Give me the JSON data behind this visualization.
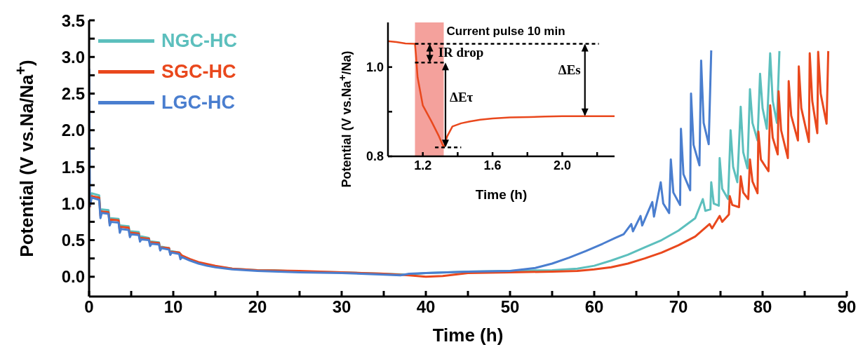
{
  "chart_data": [
    {
      "type": "line",
      "xlabel": "Time (h)",
      "ylabel": "Potential (V vs.Na/Na$^{+}$)",
      "legend": "top left",
      "xlim": [
        0,
        90
      ],
      "xticks": [
        0,
        {
          "value": 5,
          "label": null
        },
        10,
        {
          "value": 15,
          "label": null
        },
        20,
        {
          "value": 25,
          "label": null
        },
        30,
        {
          "value": 35,
          "label": null
        },
        40,
        {
          "value": 45,
          "label": null
        },
        50,
        {
          "value": 55,
          "label": null
        },
        60,
        {
          "value": 65,
          "label": null
        },
        70,
        {
          "value": 75,
          "label": null
        },
        80,
        {
          "value": 85,
          "label": null
        },
        90
      ],
      "ylim": [
        -0.27,
        3.5
      ],
      "yticks": [
        {
          "value": 0,
          "label": "0.0"
        },
        {
          "value": 0.25,
          "label": null
        },
        0.5,
        {
          "value": 0.75,
          "label": null
        },
        {
          "value": 1,
          "label": "1.0"
        },
        {
          "value": 1.25,
          "label": null
        },
        1.5,
        {
          "value": 1.75,
          "label": null
        },
        {
          "value": 2,
          "label": "2.0"
        },
        {
          "value": 2.25,
          "label": null
        },
        2.5,
        {
          "value": 2.75,
          "label": null
        },
        {
          "value": 3,
          "label": "3.0"
        },
        {
          "value": 3.25,
          "label": null
        },
        3.5
      ],
      "series": [
        {
          "name": "NGC-HC",
          "color": "#5cbfbd",
          "x": [
            0.1,
            0.3,
            1.2,
            1.35,
            1.5,
            2.3,
            2.45,
            2.6,
            3.5,
            3.65,
            3.8,
            4.7,
            4.85,
            5,
            5.9,
            6.05,
            6.2,
            7.1,
            7.25,
            7.4,
            8.3,
            8.45,
            8.6,
            9.5,
            9.65,
            9.8,
            10.7,
            11,
            12,
            13,
            15,
            17,
            20,
            22,
            25,
            30,
            35,
            38,
            40,
            45,
            50,
            55,
            58,
            60,
            62,
            64,
            66,
            68,
            70,
            72,
            72.9,
            73.2,
            73.8,
            73.9,
            74.2,
            74.8,
            74.9,
            75.2,
            75.9,
            76.2,
            76.5,
            77,
            77.4,
            77.7,
            78.2,
            78.5,
            78.8,
            79.4,
            79.7,
            80,
            80.5,
            80.9,
            81.2,
            81.7,
            82
          ],
          "values": [
            1.0,
            1.14,
            1.11,
            0.86,
            0.92,
            0.91,
            0.75,
            0.8,
            0.79,
            0.65,
            0.7,
            0.69,
            0.58,
            0.62,
            0.61,
            0.51,
            0.55,
            0.53,
            0.45,
            0.48,
            0.47,
            0.38,
            0.41,
            0.39,
            0.32,
            0.35,
            0.33,
            0.29,
            0.23,
            0.19,
            0.14,
            0.11,
            0.09,
            0.09,
            0.07,
            0.06,
            0.04,
            0.03,
            0.05,
            0.07,
            0.08,
            0.09,
            0.11,
            0.15,
            0.22,
            0.3,
            0.4,
            0.5,
            0.63,
            0.8,
            1.06,
            0.9,
            0.92,
            1.29,
            1.0,
            0.97,
            1.62,
            1.2,
            1.06,
            2.0,
            1.5,
            1.29,
            2.32,
            1.7,
            1.48,
            2.56,
            2.1,
            1.86,
            2.77,
            2.3,
            2.02,
            3.05,
            2.4,
            2.1,
            3.08
          ]
        },
        {
          "name": "SGC-HC",
          "color": "#e9481d",
          "x": [
            0.1,
            0.3,
            1.2,
            1.35,
            1.5,
            2.3,
            2.45,
            2.6,
            3.5,
            3.65,
            3.8,
            4.7,
            4.85,
            5,
            5.9,
            6.05,
            6.2,
            7.1,
            7.25,
            7.4,
            8.3,
            8.45,
            8.6,
            9.5,
            9.65,
            9.8,
            10.7,
            11,
            12,
            13,
            15,
            17,
            20,
            25,
            30,
            35,
            38,
            40,
            42,
            45,
            50,
            55,
            58,
            60,
            62,
            64,
            66,
            68,
            70,
            72,
            73.7,
            74,
            74.9,
            75.2,
            76,
            76.1,
            76.4,
            77.2,
            77.4,
            77.7,
            78.3,
            78.5,
            78.8,
            79.4,
            79.5,
            79.8,
            80.7,
            80.9,
            81.2,
            81.8,
            81.9,
            82.2,
            83,
            83.1,
            83.4,
            84.2,
            84.3,
            84.6,
            85.5,
            85.6,
            85.9,
            86.5,
            86.6,
            86.9,
            87.6,
            87.8
          ],
          "values": [
            0.95,
            1.1,
            1.08,
            0.83,
            0.89,
            0.88,
            0.72,
            0.78,
            0.77,
            0.62,
            0.68,
            0.67,
            0.56,
            0.6,
            0.59,
            0.5,
            0.53,
            0.52,
            0.44,
            0.47,
            0.46,
            0.37,
            0.4,
            0.39,
            0.31,
            0.34,
            0.33,
            0.29,
            0.24,
            0.2,
            0.15,
            0.11,
            0.09,
            0.08,
            0.06,
            0.04,
            0.02,
            0.0,
            0.01,
            0.05,
            0.06,
            0.07,
            0.08,
            0.1,
            0.13,
            0.18,
            0.25,
            0.33,
            0.43,
            0.55,
            0.72,
            0.66,
            0.83,
            0.75,
            0.85,
            1.1,
            0.98,
            0.95,
            1.37,
            1.15,
            1.06,
            1.6,
            1.3,
            1.14,
            1.98,
            1.6,
            1.44,
            2.34,
            1.9,
            1.67,
            2.53,
            2.0,
            1.62,
            2.67,
            2.2,
            1.86,
            2.87,
            2.3,
            1.84,
            3.05,
            2.4,
            1.96,
            3.07,
            2.5,
            2.09,
            3.08
          ]
        },
        {
          "name": "LGC-HC",
          "color": "#4a7ecf",
          "x": [
            0,
            0.1,
            0.3,
            1.2,
            1.35,
            1.5,
            2.3,
            2.45,
            2.6,
            3.5,
            3.65,
            3.8,
            4.7,
            4.85,
            5,
            5.9,
            6.05,
            6.2,
            7.1,
            7.25,
            7.4,
            8.3,
            8.45,
            8.6,
            9.5,
            9.65,
            9.8,
            10.7,
            10.85,
            11,
            12,
            13,
            14,
            15,
            17,
            20,
            25,
            30,
            35,
            37,
            38,
            40,
            45,
            50,
            53,
            55,
            57,
            59,
            61,
            62.5,
            63.5,
            64.4,
            64.6,
            65.5,
            65.7,
            66.9,
            67.1,
            67.9,
            68.2,
            68.9,
            69.1,
            69.4,
            70.2,
            70.3,
            70.6,
            71.4,
            71.5,
            71.8,
            72.5,
            72.7,
            73,
            73.6,
            73.9
          ],
          "values": [
            2.84,
            0.97,
            1.08,
            1.05,
            0.8,
            0.87,
            0.86,
            0.7,
            0.75,
            0.74,
            0.6,
            0.65,
            0.64,
            0.54,
            0.58,
            0.57,
            0.48,
            0.51,
            0.5,
            0.42,
            0.45,
            0.44,
            0.36,
            0.39,
            0.37,
            0.3,
            0.33,
            0.31,
            0.24,
            0.27,
            0.22,
            0.18,
            0.15,
            0.13,
            0.1,
            0.08,
            0.06,
            0.05,
            0.03,
            0.02,
            0.04,
            0.05,
            0.07,
            0.08,
            0.12,
            0.18,
            0.26,
            0.35,
            0.45,
            0.53,
            0.58,
            0.72,
            0.62,
            0.83,
            0.7,
            1.02,
            0.82,
            1.29,
            1.0,
            0.87,
            1.6,
            1.15,
            0.98,
            2.02,
            1.4,
            1.18,
            2.5,
            1.8,
            1.52,
            2.95,
            2.1,
            1.81,
            3.09
          ]
        }
      ]
    },
    {
      "type": "line",
      "xlabel": "Time (h)",
      "ylabel": "Potential (V vs.Na$^{+}$/Na)",
      "xlim": [
        1.0,
        2.3
      ],
      "xticks": [
        1.2,
        {
          "value": 1.4,
          "label": null
        },
        1.6,
        {
          "value": 1.8,
          "label": null
        },
        {
          "value": 2.0,
          "label": "2.0"
        },
        {
          "value": 2.2,
          "label": null
        }
      ],
      "ylim": [
        0.8,
        1.1
      ],
      "yticks": [
        0.8,
        {
          "value": 0.9,
          "label": null
        },
        {
          "value": 1.0,
          "label": "1.0"
        }
      ],
      "series": [
        {
          "color": "#e9481d",
          "x": [
            1.0,
            1.05,
            1.1,
            1.155,
            1.16,
            1.17,
            1.2,
            1.25,
            1.29,
            1.32,
            1.34,
            1.37,
            1.42,
            1.47,
            1.53,
            1.6,
            1.7,
            1.81,
            1.9,
            2.0,
            2.13,
            2.2,
            2.3
          ],
          "values": [
            1.058,
            1.056,
            1.053,
            1.052,
            1.03,
            0.977,
            0.914,
            0.878,
            0.847,
            0.82,
            0.845,
            0.867,
            0.874,
            0.878,
            0.882,
            0.885,
            0.887,
            0.888,
            0.889,
            0.89,
            0.89,
            0.89,
            0.89
          ]
        }
      ],
      "bands": [
        {
          "axis": "x",
          "from": 1.155,
          "to": 1.32,
          "label": "Current pulse 10 min",
          "color": "#f4a19c"
        }
      ],
      "ref_lines": [
        {
          "axis": "y",
          "value": 1.052,
          "line_style": "dashed",
          "color": "#000000"
        },
        {
          "axis": "y",
          "value": 1.01,
          "line_style": "dashed",
          "color": "#000000"
        },
        {
          "axis": "y",
          "value": 0.82,
          "line_style": "dashed",
          "color": "#000000"
        }
      ],
      "annotations": [
        {
          "text": "IR drop",
          "x": 1.16,
          "y": 1.03
        },
        "ΔEτ",
        {
          "text": "ΔEs",
          "x": 2.13,
          "y": 0.89
        }
      ]
    }
  ]
}
